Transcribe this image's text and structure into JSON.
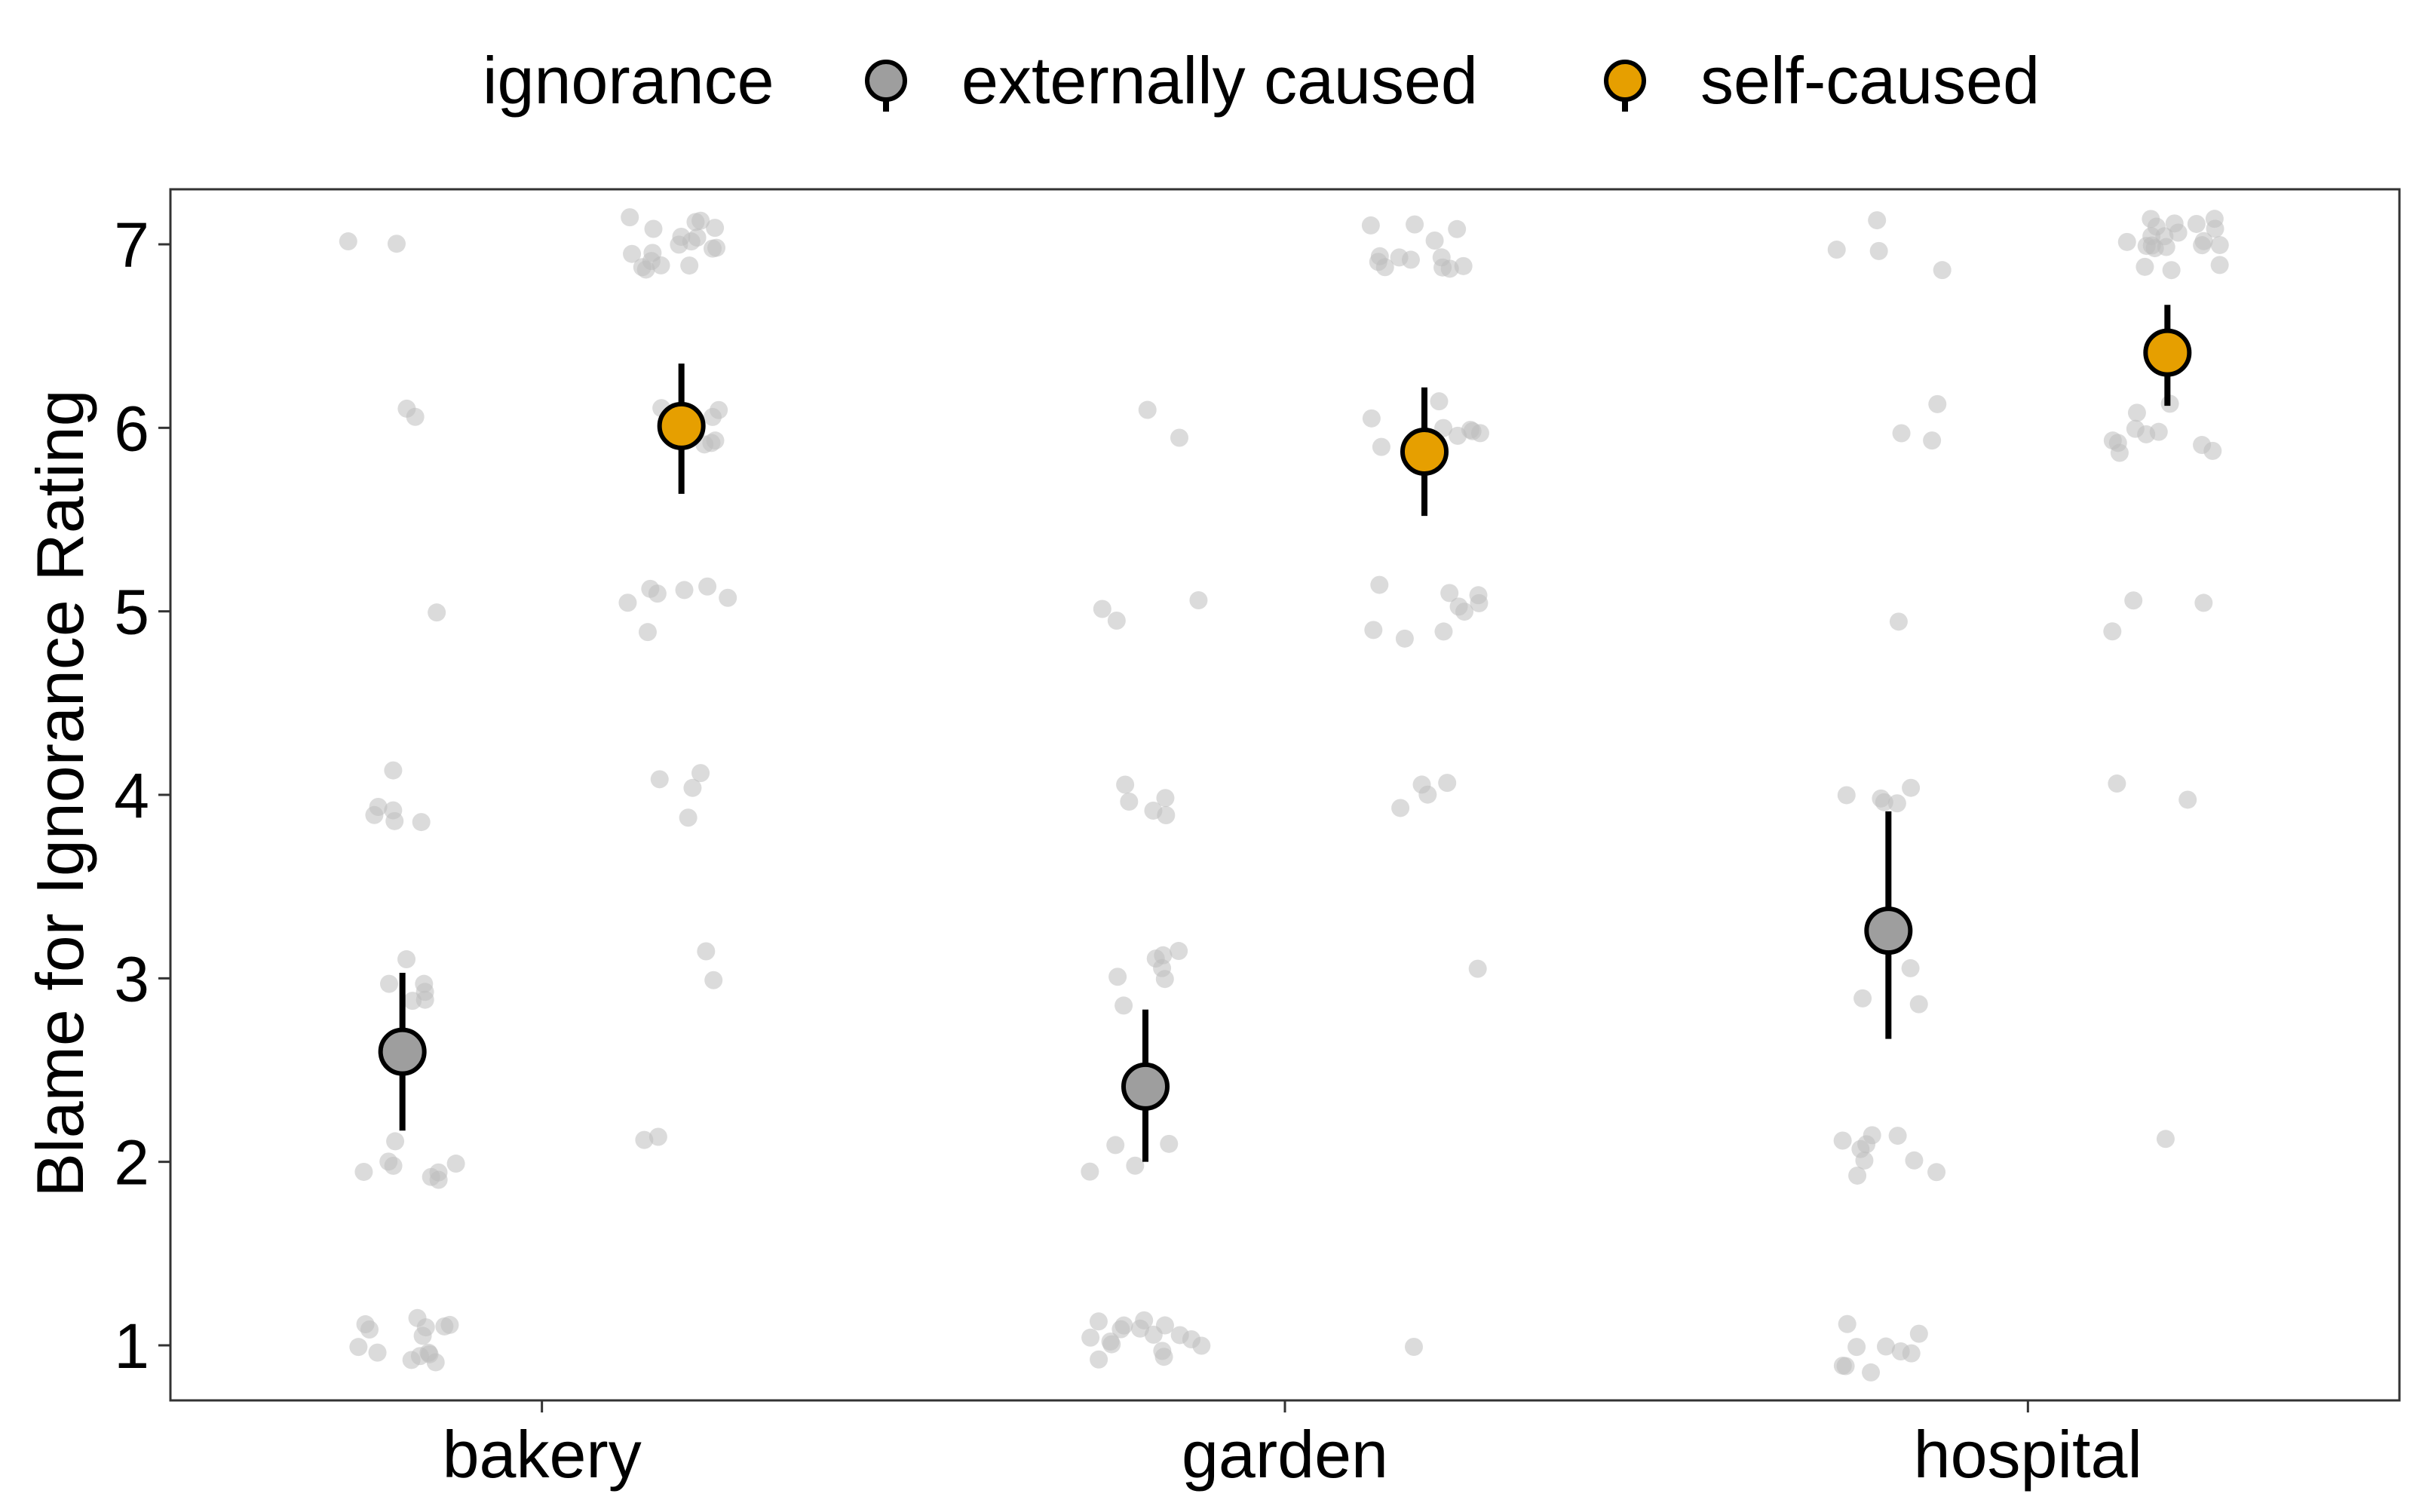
{
  "chart_data": {
    "type": "scatter",
    "ylabel": "Blame for Ignorance Rating",
    "xlabel": "",
    "ylim": [
      0.7,
      7.3
    ],
    "yticks": [
      1,
      2,
      3,
      4,
      5,
      6,
      7
    ],
    "categories": [
      "bakery",
      "garden",
      "hospital"
    ],
    "legend": {
      "title": "ignorance",
      "position": "top",
      "entries": [
        "externally caused",
        "self-caused"
      ]
    },
    "grid": false,
    "colors": {
      "externally caused": "#9e9e9e",
      "self-caused": "#e69f00",
      "raw_points": "#bdbdbd",
      "error_bar": "#000000"
    },
    "series": [
      {
        "name": "externally caused",
        "means": [
          2.6,
          2.41,
          3.26
        ],
        "ci_low": [
          2.17,
          2.0,
          2.67
        ],
        "ci_high": [
          3.03,
          2.83,
          3.91
        ],
        "raw": [
          [
            {
              "v": 1,
              "n": 14
            },
            {
              "v": 2,
              "n": 8
            },
            {
              "v": 3,
              "n": 6
            },
            {
              "v": 4,
              "n": 6
            },
            {
              "v": 5,
              "n": 1
            },
            {
              "v": 6,
              "n": 2
            },
            {
              "v": 7,
              "n": 2
            }
          ],
          [
            {
              "v": 1,
              "n": 16
            },
            {
              "v": 2,
              "n": 4
            },
            {
              "v": 3,
              "n": 7
            },
            {
              "v": 4,
              "n": 5
            },
            {
              "v": 5,
              "n": 3
            },
            {
              "v": 6,
              "n": 2
            }
          ],
          [
            {
              "v": 1,
              "n": 9
            },
            {
              "v": 2,
              "n": 9
            },
            {
              "v": 3,
              "n": 3
            },
            {
              "v": 4,
              "n": 5
            },
            {
              "v": 5,
              "n": 1
            },
            {
              "v": 6,
              "n": 3
            },
            {
              "v": 7,
              "n": 4
            }
          ]
        ]
      },
      {
        "name": "self-caused",
        "means": [
          6.01,
          5.87,
          6.41
        ],
        "ci_low": [
          5.64,
          5.52,
          6.12
        ],
        "ci_high": [
          6.35,
          6.22,
          6.67
        ],
        "raw": [
          [
            {
              "v": 2,
              "n": 2
            },
            {
              "v": 3,
              "n": 2
            },
            {
              "v": 4,
              "n": 4
            },
            {
              "v": 5,
              "n": 7
            },
            {
              "v": 6,
              "n": 6
            },
            {
              "v": 7,
              "n": 18
            }
          ],
          [
            {
              "v": 1,
              "n": 1
            },
            {
              "v": 3,
              "n": 1
            },
            {
              "v": 4,
              "n": 4
            },
            {
              "v": 5,
              "n": 9
            },
            {
              "v": 6,
              "n": 9
            },
            {
              "v": 7,
              "n": 13
            }
          ],
          [
            {
              "v": 2,
              "n": 1
            },
            {
              "v": 4,
              "n": 2
            },
            {
              "v": 5,
              "n": 3
            },
            {
              "v": 6,
              "n": 10
            },
            {
              "v": 7,
              "n": 20
            }
          ]
        ]
      }
    ]
  }
}
